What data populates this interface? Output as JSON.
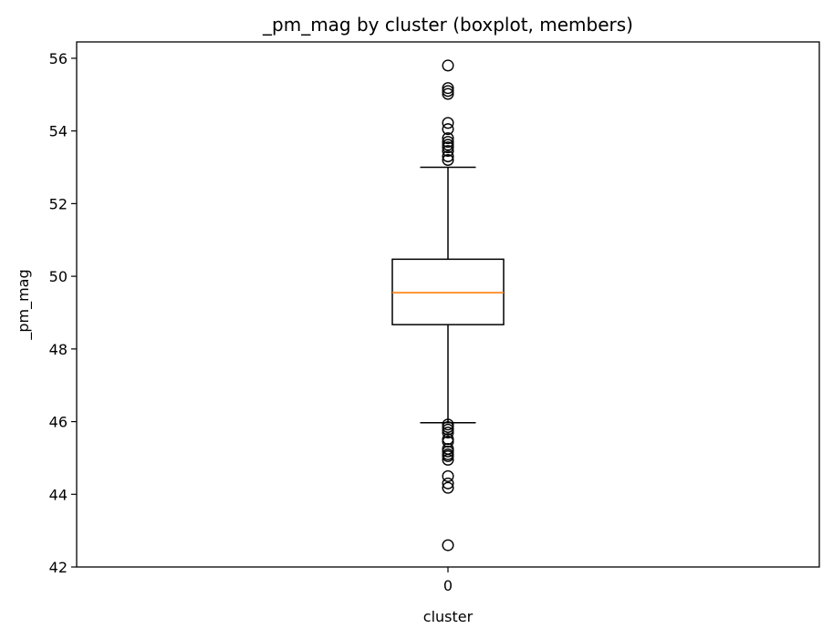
{
  "chart_data": {
    "type": "boxplot",
    "title": "_pm_mag by cluster (boxplot, members)",
    "xlabel": "cluster",
    "ylabel": "_pm_mag",
    "categories": [
      "0"
    ],
    "ylim": [
      42,
      56.45
    ],
    "yticks": [
      42,
      44,
      46,
      48,
      50,
      52,
      54,
      56
    ],
    "grid": false,
    "colors": {
      "box": "#000000",
      "median": "#ff7f0e",
      "outlier": "#000000"
    },
    "boxes": [
      {
        "category": "0",
        "whisker_low": 45.97,
        "q1": 48.67,
        "median": 49.55,
        "q3": 50.47,
        "whisker_high": 53.0,
        "outliers": [
          55.8,
          55.18,
          55.1,
          55.02,
          54.22,
          54.05,
          53.8,
          53.7,
          53.62,
          53.55,
          53.45,
          53.3,
          53.2,
          45.92,
          45.85,
          45.78,
          45.7,
          45.52,
          45.45,
          45.25,
          45.18,
          45.1,
          45.05,
          44.95,
          44.5,
          44.3,
          44.18,
          42.6
        ]
      }
    ]
  }
}
